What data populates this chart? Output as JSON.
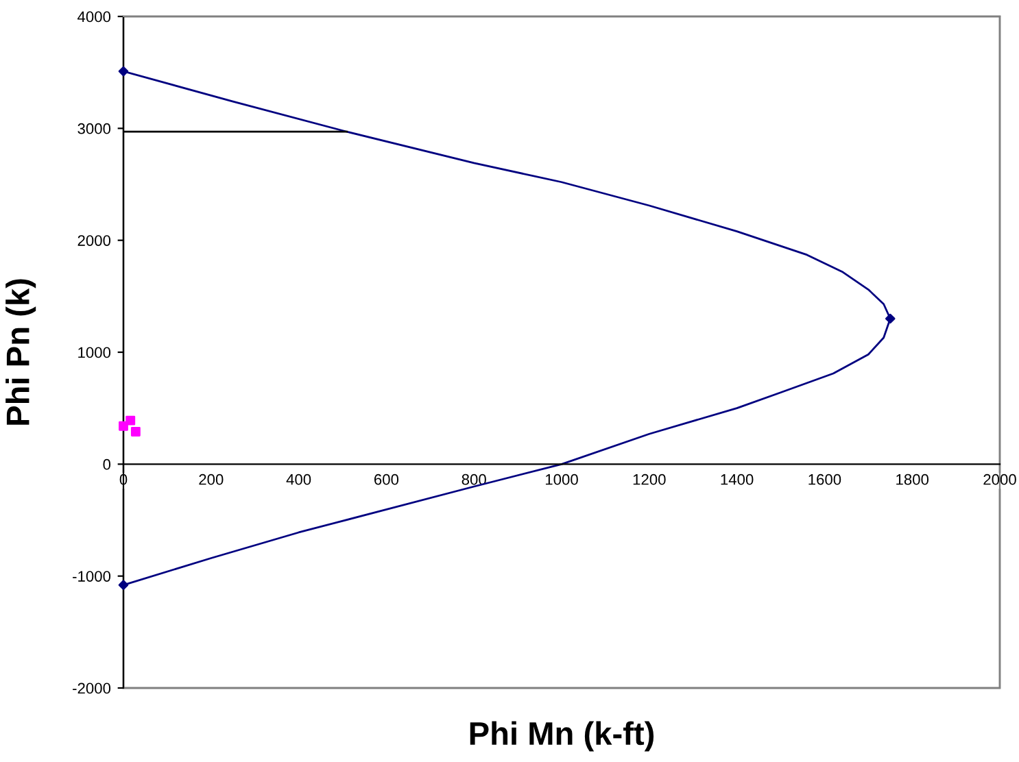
{
  "chart_data": {
    "type": "line",
    "xlabel": "Phi Mn (k-ft)",
    "ylabel": "Phi Pn (k)",
    "series": [
      {
        "color": "#000080",
        "marker": "none",
        "x": [
          0,
          250,
          510,
          800,
          1000,
          1200,
          1400,
          1560,
          1640,
          1700,
          1735,
          1750,
          1735,
          1700,
          1620,
          1500,
          1400,
          1200,
          1000,
          800,
          400,
          200,
          0
        ],
        "values": [
          3510,
          3240,
          2970,
          2690,
          2520,
          2310,
          2080,
          1870,
          1720,
          1560,
          1430,
          1300,
          1130,
          980,
          810,
          640,
          500,
          270,
          0,
          -200,
          -610,
          -840,
          -1080
        ]
      },
      {
        "type": "scatter",
        "color": "#000080",
        "marker": "diamond",
        "x": [
          0,
          1750,
          0
        ],
        "values": [
          3510,
          1300,
          -1080
        ]
      },
      {
        "type": "line",
        "color": "#000000",
        "marker": "none",
        "x": [
          0,
          510
        ],
        "values": [
          2970,
          2970
        ]
      },
      {
        "type": "scatter",
        "color": "#ff00ff",
        "marker": "square",
        "x": [
          0,
          16,
          28
        ],
        "values": [
          340,
          390,
          290
        ]
      }
    ],
    "xlim": [
      0,
      2000
    ],
    "ylim": [
      -2000,
      4000
    ],
    "xticks": [
      0,
      200,
      400,
      600,
      800,
      1000,
      1200,
      1400,
      1600,
      1800,
      2000
    ],
    "yticks": [
      -2000,
      -1000,
      0,
      1000,
      2000,
      3000,
      4000
    ],
    "grid": false,
    "legend": false
  }
}
